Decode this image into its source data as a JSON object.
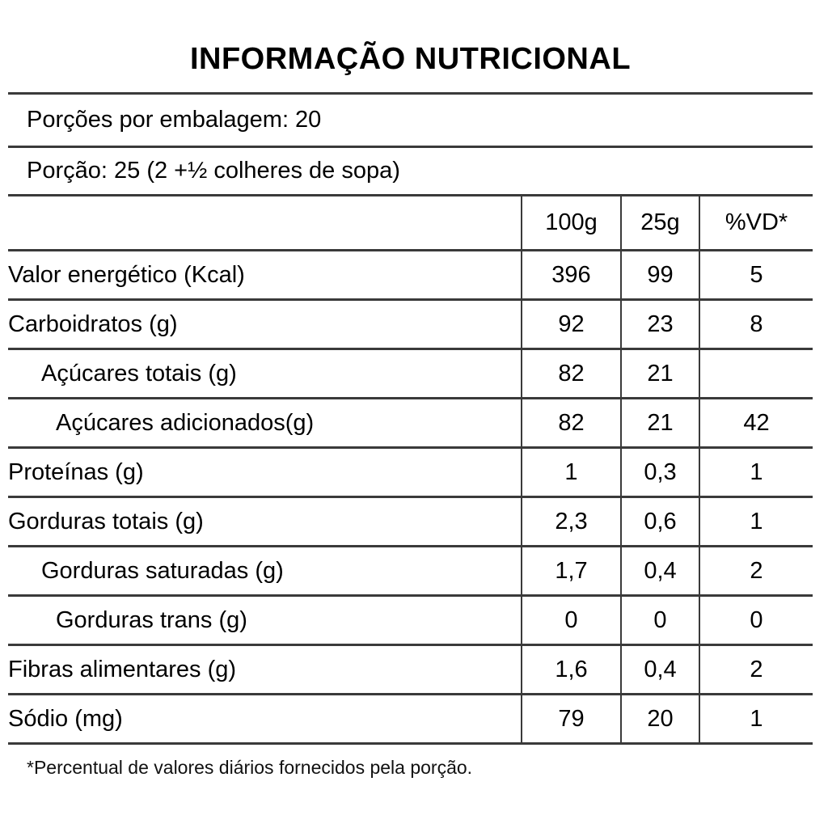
{
  "title": "INFORMAÇÃO NUTRICIONAL",
  "package_info": {
    "servings_per_package": "Porções por embalagem: 20",
    "serving_size": "Porção: 25 (2 +½ colheres de sopa)"
  },
  "table": {
    "columns": {
      "nutrient": "",
      "per_100g": "100g",
      "per_25g": "25g",
      "daily_value": "%VD*"
    },
    "rows": [
      {
        "label": "Valor energético (Kcal)",
        "per_100g": "396",
        "per_25g": "99",
        "daily_value": "5"
      },
      {
        "label": "Carboidratos (g)",
        "per_100g": "92",
        "per_25g": "23",
        "daily_value": "8"
      },
      {
        "label": "Açúcares totais (g)",
        "per_100g": "82",
        "per_25g": "21",
        "daily_value": ""
      },
      {
        "label": "Açúcares adicionados(g)",
        "per_100g": "82",
        "per_25g": "21",
        "daily_value": "42"
      },
      {
        "label": "Proteínas (g)",
        "per_100g": "1",
        "per_25g": "0,3",
        "daily_value": "1"
      },
      {
        "label": "Gorduras totais (g)",
        "per_100g": "2,3",
        "per_25g": "0,6",
        "daily_value": "1"
      },
      {
        "label": "Gorduras saturadas (g)",
        "per_100g": "1,7",
        "per_25g": "0,4",
        "daily_value": "2"
      },
      {
        "label": "Gorduras trans (g)",
        "per_100g": "0",
        "per_25g": "0",
        "daily_value": "0"
      },
      {
        "label": "Fibras alimentares (g)",
        "per_100g": "1,6",
        "per_25g": "0,4",
        "daily_value": "2"
      },
      {
        "label": "Sódio (mg)",
        "per_100g": "79",
        "per_25g": "20",
        "daily_value": "1"
      }
    ]
  },
  "footnote": "*Percentual de valores diários fornecidos pela porção.",
  "colors": {
    "line": "#3a3a3a",
    "text": "#000000",
    "background": "#ffffff"
  }
}
